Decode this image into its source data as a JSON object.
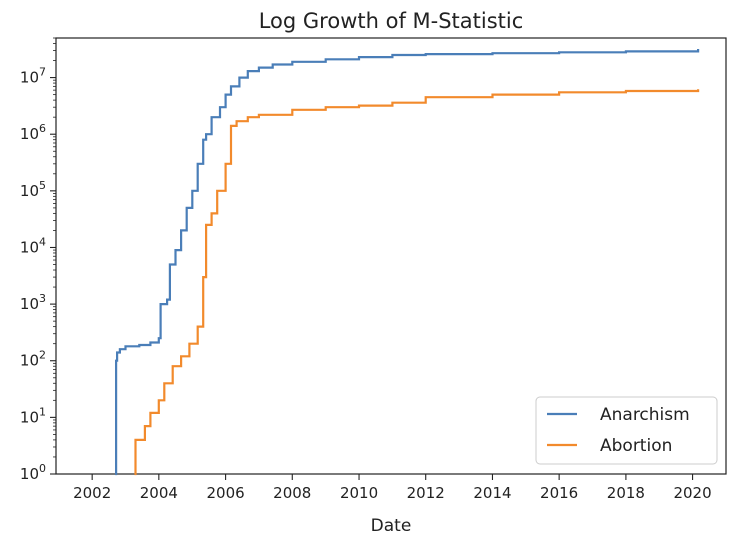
{
  "chart_data": {
    "type": "line",
    "title": "Log Growth of M-Statistic",
    "xlabel": "Date",
    "ylabel": "",
    "yscale": "log",
    "xlim": [
      "2000-12-01",
      "2021-01-01"
    ],
    "ylim": [
      1,
      50000000
    ],
    "x_ticks": [
      "2002",
      "2004",
      "2006",
      "2008",
      "2010",
      "2012",
      "2014",
      "2016",
      "2018",
      "2020"
    ],
    "y_ticks": [
      {
        "value": 1,
        "base": "10",
        "exp": "0"
      },
      {
        "value": 10,
        "base": "10",
        "exp": "1"
      },
      {
        "value": 100,
        "base": "10",
        "exp": "2"
      },
      {
        "value": 1000,
        "base": "10",
        "exp": "3"
      },
      {
        "value": 10000,
        "base": "10",
        "exp": "4"
      },
      {
        "value": 100000,
        "base": "10",
        "exp": "5"
      },
      {
        "value": 1000000,
        "base": "10",
        "exp": "6"
      },
      {
        "value": 10000000,
        "base": "10",
        "exp": "7"
      }
    ],
    "grid": false,
    "legend_position": "lower-right",
    "series": [
      {
        "name": "Anarchism",
        "color": "#4a7eb8",
        "x": [
          "2002-09-10",
          "2002-09-20",
          "2002-10-01",
          "2002-11-01",
          "2003-01-01",
          "2003-06-01",
          "2003-10-01",
          "2004-01-01",
          "2004-01-20",
          "2004-04-01",
          "2004-05-01",
          "2004-07-01",
          "2004-09-01",
          "2004-11-01",
          "2005-01-01",
          "2005-03-01",
          "2005-05-01",
          "2005-06-01",
          "2005-08-01",
          "2005-11-01",
          "2006-01-01",
          "2006-03-01",
          "2006-06-01",
          "2006-09-01",
          "2007-01-01",
          "2007-06-01",
          "2008-01-01",
          "2009-01-01",
          "2010-01-01",
          "2011-01-01",
          "2012-01-01",
          "2014-01-01",
          "2016-01-01",
          "2018-01-01",
          "2020-03-01"
        ],
        "y": [
          1,
          100,
          140,
          160,
          180,
          190,
          210,
          250,
          1000,
          1200,
          5000,
          9000,
          20000,
          50000,
          100000,
          300000,
          800000,
          1000000,
          2000000,
          3000000,
          5000000,
          7000000,
          10000000,
          13000000,
          15000000,
          17000000,
          19000000,
          21000000,
          23000000,
          25000000,
          26000000,
          27000000,
          28000000,
          29000000,
          32000000
        ]
      },
      {
        "name": "Abortion",
        "color": "#f28a2c",
        "x": [
          "2003-04-10",
          "2003-04-20",
          "2003-08-01",
          "2003-10-01",
          "2004-01-01",
          "2004-03-01",
          "2004-06-01",
          "2004-09-01",
          "2004-12-01",
          "2005-03-01",
          "2005-05-01",
          "2005-06-01",
          "2005-08-01",
          "2005-10-01",
          "2006-01-01",
          "2006-03-01",
          "2006-05-01",
          "2006-09-01",
          "2007-01-01",
          "2008-01-01",
          "2009-01-01",
          "2010-01-01",
          "2011-01-01",
          "2012-01-01",
          "2014-01-01",
          "2016-01-01",
          "2018-01-01",
          "2020-03-01"
        ],
        "y": [
          1,
          4,
          7,
          12,
          20,
          40,
          80,
          120,
          200,
          400,
          3000,
          25000,
          40000,
          100000,
          300000,
          1400000,
          1700000,
          2000000,
          2200000,
          2700000,
          3000000,
          3200000,
          3600000,
          4500000,
          5000000,
          5500000,
          5800000,
          6200000
        ]
      }
    ]
  }
}
